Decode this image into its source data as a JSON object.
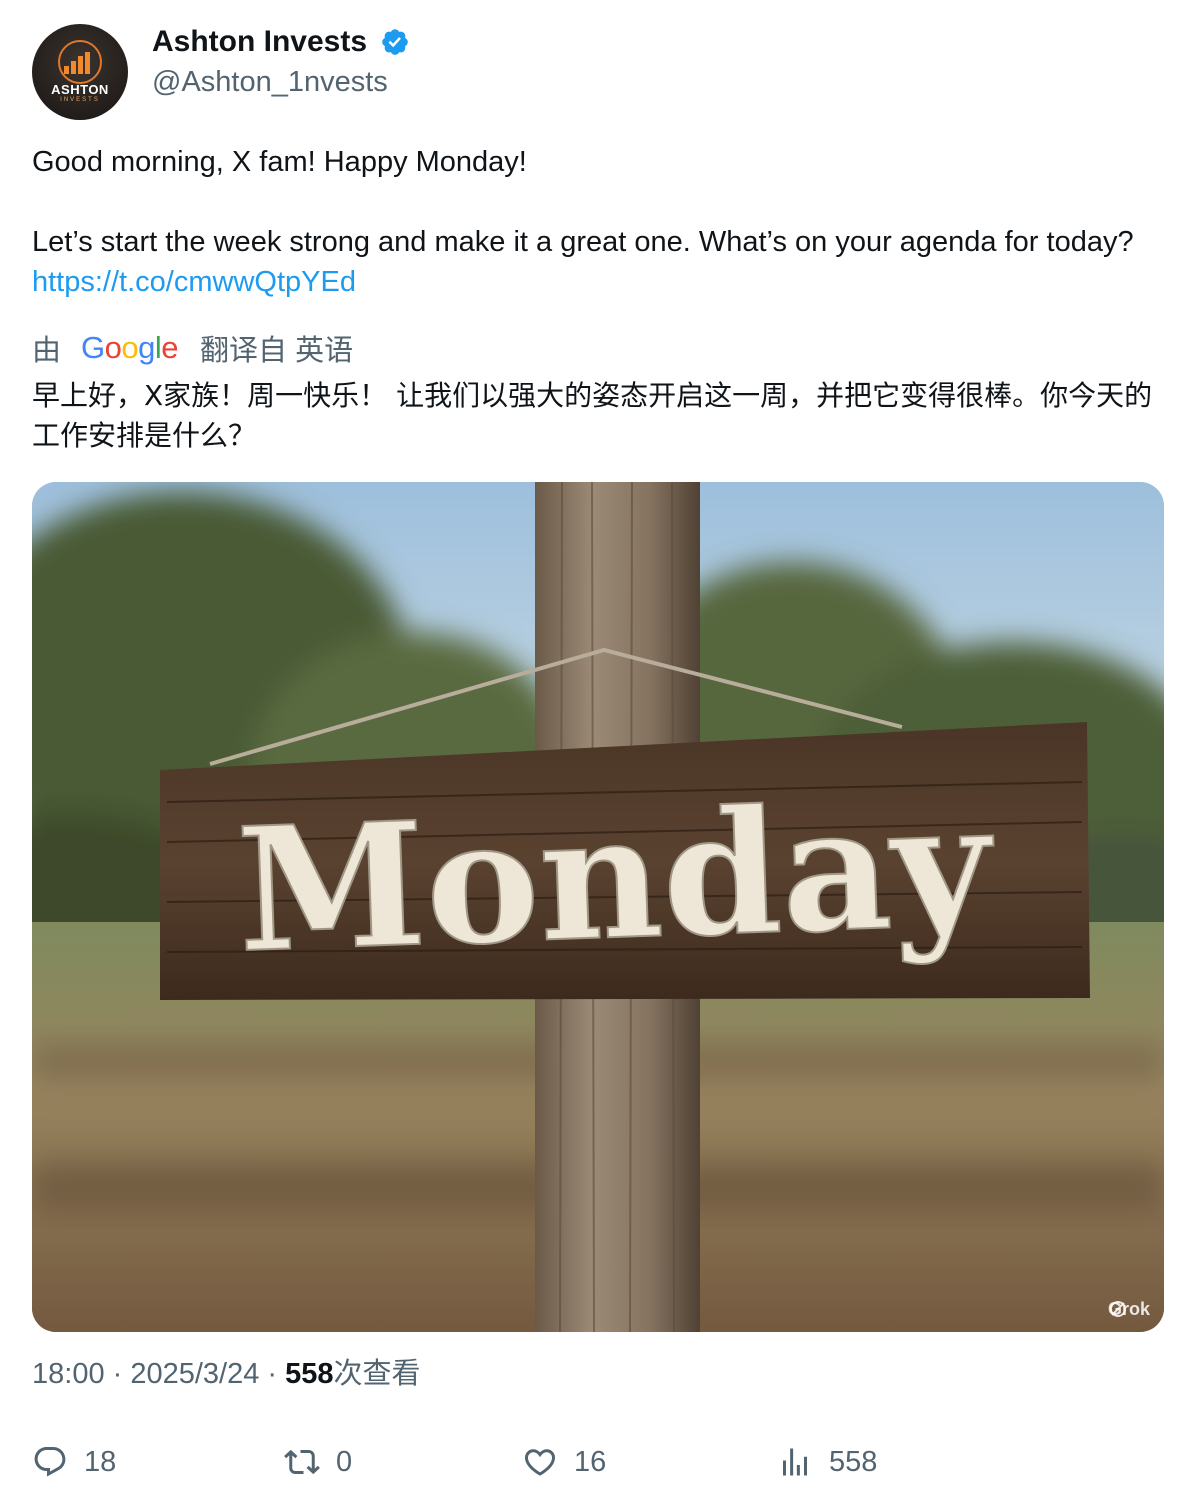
{
  "author": {
    "display_name": "Ashton Invests",
    "handle": "@Ashton_1nvests",
    "verified": true,
    "avatar_text": "ASHTON",
    "avatar_subtext": "INVESTS"
  },
  "tweet": {
    "line1": "Good morning, X fam! Happy Monday!",
    "line2": "Let’s start the week strong and make it a great one. What’s on your agenda for today? ",
    "link": "https://t.co/cmwwQtpYEd"
  },
  "translation": {
    "prefix": "由",
    "provider": "Google",
    "suffix": "翻译自 英语",
    "text": "早上好，X家族！周一快乐！ 让我们以强大的姿态开启这一周，并把它变得很棒。你今天的工作安排是什么？"
  },
  "media": {
    "sign_text": "Monday",
    "watermark": "Grok"
  },
  "meta": {
    "time": "18:00",
    "separator": " · ",
    "date": "2025/3/24",
    "views_count": "558",
    "views_label": "次查看"
  },
  "actions": {
    "replies": "18",
    "reposts": "0",
    "likes": "16",
    "views": "558"
  },
  "colors": {
    "link": "#1d9bf0",
    "secondary_text": "#536471",
    "verified": "#1d9bf0"
  }
}
